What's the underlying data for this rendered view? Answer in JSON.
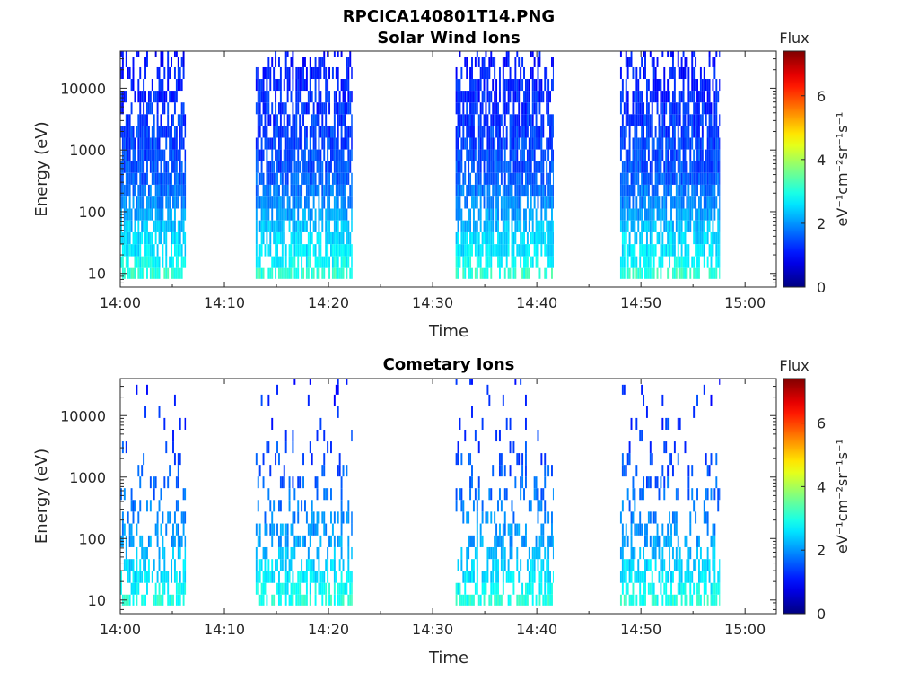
{
  "figure": {
    "title": "RPCICA140801T14.PNG"
  },
  "chart_data": [
    {
      "type": "heatmap",
      "title": "Solar Wind Ions",
      "xlabel": "Time",
      "ylabel": "Energy (eV)",
      "yscale": "log",
      "xlim": [
        "14:00",
        "15:03"
      ],
      "ylim": [
        6,
        40000
      ],
      "xticks": [
        "14:00",
        "14:10",
        "14:20",
        "14:30",
        "14:40",
        "14:50",
        "15:00"
      ],
      "yticks": [
        "10",
        "100",
        "1000",
        "10000"
      ],
      "active_intervals": [
        [
          "14:00",
          "14:06.3"
        ],
        [
          "14:13.0",
          "14:22.3"
        ],
        [
          "14:32.2",
          "14:41.6"
        ],
        [
          "14:48.0",
          "14:57.6"
        ]
      ],
      "energy_bins": [
        10,
        15,
        24,
        37,
        58,
        90,
        140,
        220,
        340,
        530,
        820,
        1270,
        1970,
        3050,
        4730,
        7340,
        11400,
        17600,
        27300,
        37000
      ],
      "typical_flux_by_bin": [
        3.1,
        2.8,
        2.6,
        2.5,
        2.3,
        2.1,
        1.9,
        1.75,
        1.6,
        1.5,
        1.45,
        1.4,
        1.35,
        1.3,
        1.25,
        1.2,
        1.15,
        1.1,
        1.05,
        1.0
      ],
      "occupancy_by_bin": [
        0.65,
        0.7,
        0.75,
        0.75,
        0.7,
        0.75,
        0.8,
        0.85,
        0.85,
        0.85,
        0.8,
        0.8,
        0.75,
        0.7,
        0.65,
        0.6,
        0.5,
        0.45,
        0.35,
        0.25
      ],
      "colorbar": {
        "title": "Flux",
        "label": "eV⁻¹cm⁻²sr⁻¹s⁻¹",
        "range": [
          0,
          7.4
        ],
        "ticks": [
          "0",
          "2",
          "4",
          "6"
        ],
        "colormap": "jet"
      }
    },
    {
      "type": "heatmap",
      "title": "Cometary Ions",
      "xlabel": "Time",
      "ylabel": "Energy (eV)",
      "yscale": "log",
      "xlim": [
        "14:00",
        "15:03"
      ],
      "ylim": [
        6,
        40000
      ],
      "xticks": [
        "14:00",
        "14:10",
        "14:20",
        "14:30",
        "14:40",
        "14:50",
        "15:00"
      ],
      "yticks": [
        "10",
        "100",
        "1000",
        "10000"
      ],
      "active_intervals": [
        [
          "14:00",
          "14:06.3"
        ],
        [
          "14:13.0",
          "14:22.3"
        ],
        [
          "14:32.2",
          "14:41.6"
        ],
        [
          "14:48.0",
          "14:57.6"
        ]
      ],
      "energy_bins": [
        10,
        15,
        24,
        37,
        58,
        90,
        140,
        220,
        340,
        530,
        820,
        1270,
        1970,
        3050,
        4730,
        7340,
        11400,
        17600,
        27300,
        37000
      ],
      "typical_flux_by_bin": [
        3.0,
        2.8,
        2.6,
        2.5,
        2.3,
        2.1,
        2.0,
        1.9,
        1.8,
        1.7,
        1.6,
        1.5,
        1.45,
        1.4,
        1.35,
        1.3,
        1.25,
        1.2,
        1.15,
        1.1
      ],
      "occupancy_by_bin": [
        0.6,
        0.55,
        0.6,
        0.55,
        0.45,
        0.4,
        0.35,
        0.3,
        0.25,
        0.22,
        0.18,
        0.15,
        0.13,
        0.12,
        0.1,
        0.08,
        0.07,
        0.06,
        0.05,
        0.05
      ],
      "colorbar": {
        "title": "Flux",
        "label": "eV⁻¹cm⁻²sr⁻¹s⁻¹",
        "range": [
          0,
          7.4
        ],
        "ticks": [
          "0",
          "2",
          "4",
          "6"
        ],
        "colormap": "jet"
      }
    }
  ]
}
